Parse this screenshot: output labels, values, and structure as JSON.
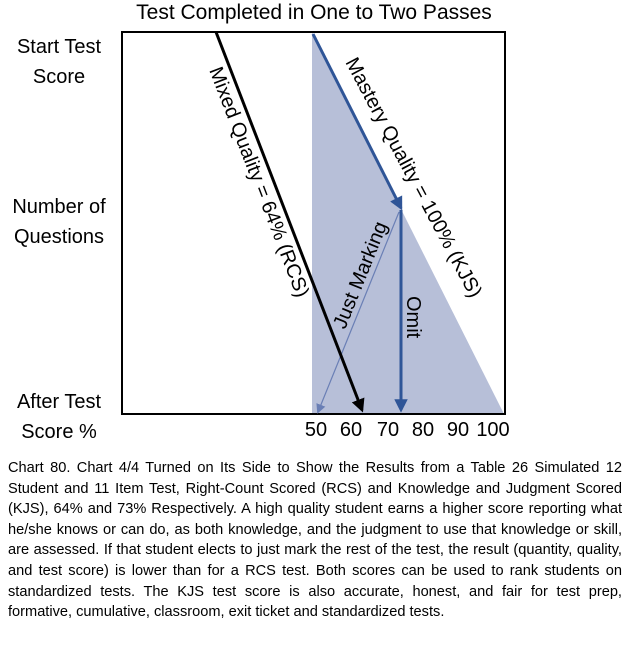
{
  "title": "Test Completed in One to Two Passes",
  "y_labels": {
    "start": [
      "Start Test",
      "Score"
    ],
    "middle": [
      "Number of",
      "Questions"
    ],
    "end": [
      "After Test",
      "Score %"
    ]
  },
  "x_axis": {
    "ticks": [
      "50",
      "60",
      "70",
      "80",
      "90",
      "100"
    ]
  },
  "annotations": {
    "mixed": "Mixed  Quality = 64% (RCS)",
    "mastery": "Mastery  Quality = 100% (KJS)",
    "just_marking": "Just Marking",
    "omit": "Omit"
  },
  "colors": {
    "triangle_fill": "#b7bfd8",
    "blue_line": "#2f5597",
    "thin_line": "#6a7fb5",
    "black": "#000000"
  },
  "caption": "Chart 80. Chart 4/4 Turned on Its Side to Show the Results from a Table 26 Simulated 12 Student and 11 Item Test, Right-Count Scored (RCS) and Knowledge and Judgment Scored (KJS), 64% and 73% Respectively. A high quality student earns a higher score reporting what he/she knows or can do, as both knowledge, and the judgment to use that knowledge or skill, are assessed. If that student elects to just mark the rest of the test, the result (quantity, quality, and test score) is lower than for a RCS test.  Both scores can be used to rank students on standardized tests. The KJS test score  is also accurate, honest, and fair for test prep, formative, cumulative, classroom, exit ticket and standardized tests."
}
